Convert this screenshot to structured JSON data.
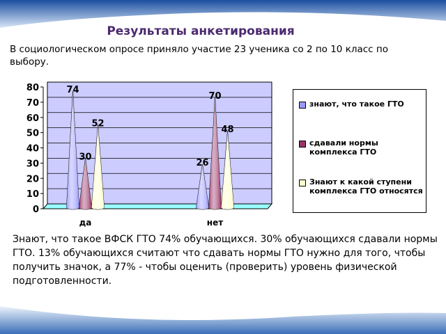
{
  "slide_title": "Результаты анкетирования",
  "intro": "В социологическом опросе приняло участие 23  ученика со 2 по 10 класс по выбору.",
  "conclusion": "Знают, что такое ВФСК ГТО 74% обучающихся. 30% обучающихся сдавали нормы ГТО.  13% обучающихся считают что  сдавать  нормы ГТО нужно для того,  чтобы получить значок, а 77% -  чтобы оценить (проверить) уровень физической подготовленности.",
  "chart_data": {
    "type": "cone",
    "categories": [
      "да",
      "нет"
    ],
    "series": [
      {
        "name": "знают, что такое ГТО",
        "color": "#9999ff",
        "values": [
          74,
          26
        ]
      },
      {
        "name": "сдавали нормы комплекса ГТО",
        "color": "#993366",
        "values": [
          30,
          70
        ]
      },
      {
        "name": "Знают к какой ступени комплекса ГТО относятся",
        "color": "#ffffcc",
        "values": [
          52,
          48
        ]
      }
    ],
    "ylim": [
      0,
      80
    ],
    "yticks": [
      0,
      10,
      20,
      30,
      40,
      50,
      60,
      70,
      80
    ],
    "grid": true,
    "legend": "right"
  }
}
